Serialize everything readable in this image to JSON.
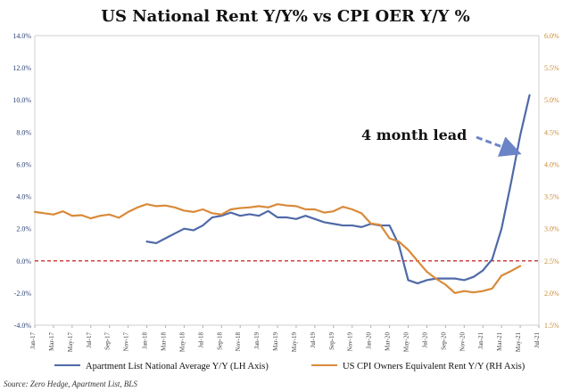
{
  "chart_data": {
    "type": "line",
    "title": "US National Rent Y/Y%  vs CPI OER Y/Y %",
    "left_axis": {
      "range": [
        -4.0,
        14.0
      ],
      "ticks": [
        "14.0%",
        "12.0%",
        "10.0%",
        "8.0%",
        "6.0%",
        "4.0%",
        "2.0%",
        "0.0%",
        "-2.0%",
        "-4.0%"
      ],
      "tick_values": [
        14,
        12,
        10,
        8,
        6,
        4,
        2,
        0,
        -2,
        -4
      ],
      "color": "#4f6aa8"
    },
    "right_axis": {
      "range": [
        1.5,
        6.0
      ],
      "ticks": [
        "6.0%",
        "5.5%",
        "5.0%",
        "4.5%",
        "4.0%",
        "3.5%",
        "3.0%",
        "2.5%",
        "2.0%",
        "1.5%"
      ],
      "tick_values": [
        6.0,
        5.5,
        5.0,
        4.5,
        4.0,
        3.5,
        3.0,
        2.5,
        2.0,
        1.5
      ],
      "color": "#d98a3a"
    },
    "x_range": [
      0,
      54
    ],
    "x_ticks": [
      "Jan-17",
      "Mar-17",
      "May-17",
      "Jul-17",
      "Sep-17",
      "Nov-17",
      "Jan-18",
      "Mar-18",
      "May-18",
      "Jul-18",
      "Sep-18",
      "Nov-18",
      "Jan-19",
      "Mar-19",
      "May-19",
      "Jul-19",
      "Sep-19",
      "Nov-19",
      "Jan-20",
      "Mar-20",
      "May-20",
      "Jul-20",
      "Sep-20",
      "Nov-20",
      "Jan-21",
      "Mar-21",
      "May-21",
      "Jul-21"
    ],
    "x_tick_values": [
      0,
      2,
      4,
      6,
      8,
      10,
      12,
      14,
      16,
      18,
      20,
      22,
      24,
      26,
      28,
      30,
      32,
      34,
      36,
      38,
      40,
      42,
      44,
      46,
      48,
      50,
      52,
      54
    ],
    "series": [
      {
        "name": "Apartment List  National Average Y/Y (LH Axis)",
        "axis": "left",
        "color": "#4f6aa8",
        "points": [
          [
            12,
            1.2
          ],
          [
            13,
            1.1
          ],
          [
            14,
            1.4
          ],
          [
            15,
            1.7
          ],
          [
            16,
            2.0
          ],
          [
            17,
            1.9
          ],
          [
            18,
            2.2
          ],
          [
            19,
            2.7
          ],
          [
            20,
            2.8
          ],
          [
            21,
            3.0
          ],
          [
            22,
            2.8
          ],
          [
            23,
            2.9
          ],
          [
            24,
            2.8
          ],
          [
            25,
            3.1
          ],
          [
            26,
            2.7
          ],
          [
            27,
            2.7
          ],
          [
            28,
            2.6
          ],
          [
            29,
            2.8
          ],
          [
            30,
            2.6
          ],
          [
            31,
            2.4
          ],
          [
            32,
            2.3
          ],
          [
            33,
            2.2
          ],
          [
            34,
            2.2
          ],
          [
            35,
            2.1
          ],
          [
            36,
            2.3
          ],
          [
            37,
            2.2
          ],
          [
            38,
            2.2
          ],
          [
            39,
            1.0
          ],
          [
            40,
            -1.2
          ],
          [
            41,
            -1.4
          ],
          [
            42,
            -1.2
          ],
          [
            43,
            -1.1
          ],
          [
            44,
            -1.1
          ],
          [
            45,
            -1.1
          ],
          [
            46,
            -1.2
          ],
          [
            47,
            -1.0
          ],
          [
            48,
            -0.6
          ],
          [
            49,
            0.1
          ],
          [
            50,
            2.0
          ],
          [
            51,
            4.8
          ],
          [
            52,
            7.8
          ],
          [
            53,
            10.3
          ]
        ]
      },
      {
        "name": "US CPI Owners Equivalent Rent Y/Y (RH Axis)",
        "axis": "right",
        "color": "#d98a3a",
        "points": [
          [
            0,
            3.26
          ],
          [
            1,
            3.24
          ],
          [
            2,
            3.22
          ],
          [
            3,
            3.27
          ],
          [
            4,
            3.2
          ],
          [
            5,
            3.21
          ],
          [
            6,
            3.16
          ],
          [
            7,
            3.2
          ],
          [
            8,
            3.22
          ],
          [
            9,
            3.17
          ],
          [
            10,
            3.26
          ],
          [
            11,
            3.33
          ],
          [
            12,
            3.38
          ],
          [
            13,
            3.35
          ],
          [
            14,
            3.36
          ],
          [
            15,
            3.33
          ],
          [
            16,
            3.28
          ],
          [
            17,
            3.26
          ],
          [
            18,
            3.3
          ],
          [
            19,
            3.24
          ],
          [
            20,
            3.22
          ],
          [
            21,
            3.3
          ],
          [
            22,
            3.32
          ],
          [
            23,
            3.33
          ],
          [
            24,
            3.35
          ],
          [
            25,
            3.33
          ],
          [
            26,
            3.38
          ],
          [
            27,
            3.36
          ],
          [
            28,
            3.35
          ],
          [
            29,
            3.3
          ],
          [
            30,
            3.3
          ],
          [
            31,
            3.25
          ],
          [
            32,
            3.27
          ],
          [
            33,
            3.34
          ],
          [
            34,
            3.3
          ],
          [
            35,
            3.24
          ],
          [
            36,
            3.08
          ],
          [
            37,
            3.06
          ],
          [
            38,
            2.85
          ],
          [
            39,
            2.8
          ],
          [
            40,
            2.67
          ],
          [
            41,
            2.5
          ],
          [
            42,
            2.33
          ],
          [
            43,
            2.22
          ],
          [
            44,
            2.13
          ],
          [
            45,
            2.0
          ],
          [
            46,
            2.03
          ],
          [
            47,
            2.01
          ],
          [
            48,
            2.03
          ],
          [
            49,
            2.07
          ],
          [
            50,
            2.27
          ],
          [
            51,
            2.34
          ],
          [
            52,
            2.42
          ]
        ]
      }
    ],
    "reference_line": {
      "value": 0.0,
      "axis": "left",
      "color": "#c93030",
      "style": "dashed"
    },
    "annotation": {
      "text": "4 month lead",
      "arrow_color": "#6b84c7"
    },
    "legend_placement": "bottom",
    "source": "Source: Zero Hedge, Apartment List, BLS"
  }
}
